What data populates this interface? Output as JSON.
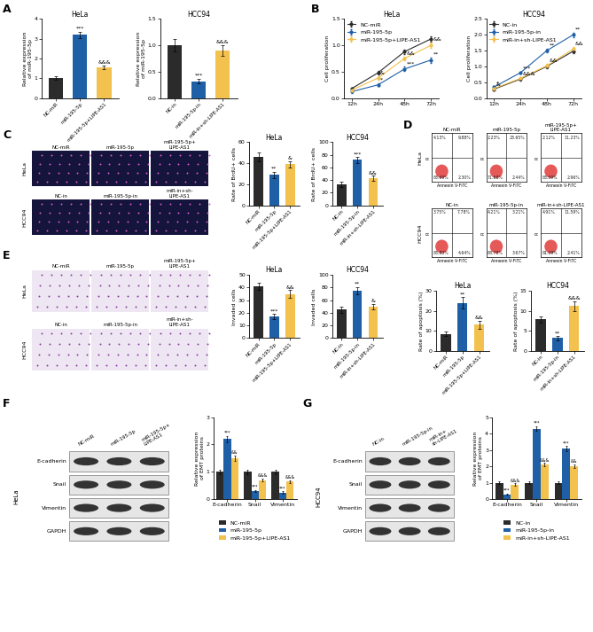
{
  "panel_labels": [
    "A",
    "B",
    "C",
    "D",
    "E",
    "F",
    "G"
  ],
  "chart_data": [
    {
      "type": "bar",
      "title": "HeLa",
      "y_label": "Relative expression\nof miR-195-5p",
      "categories": [
        "NC-miR",
        "miR-195-5p",
        "miR-195-5p+LIPE-AS1"
      ],
      "values": [
        1.0,
        3.2,
        1.55
      ],
      "errors": [
        0.1,
        0.15,
        0.1
      ],
      "colors": [
        "#2b2b2b",
        "#1f5fa6",
        "#f2c14e"
      ],
      "significance": [
        null,
        "***",
        "&&&"
      ],
      "ylim": [
        0,
        4
      ],
      "yticks": [
        0,
        1,
        2,
        3,
        4
      ]
    },
    {
      "type": "bar",
      "title": "HCC94",
      "y_label": "Relative expression\nof miR-195-5p",
      "categories": [
        "NC-in",
        "miR-195-5p-in",
        "miR-in+sh-LIPE-AS1"
      ],
      "values": [
        1.0,
        0.32,
        0.9
      ],
      "errors": [
        0.12,
        0.05,
        0.1
      ],
      "colors": [
        "#2b2b2b",
        "#1f5fa6",
        "#f2c14e"
      ],
      "significance": [
        null,
        "***",
        "&&&"
      ],
      "ylim": [
        0.0,
        1.5
      ],
      "yticks": [
        0.0,
        0.5,
        1.0,
        1.5
      ]
    },
    {
      "type": "line",
      "title": "HeLa",
      "y_label": "Cell proliferation",
      "categories": [
        "12h",
        "24h",
        "48h",
        "72h"
      ],
      "marker": "o",
      "legend": "upper left",
      "series": [
        {
          "name": "NC-miR",
          "color": "#2b2b2b",
          "values": [
            0.18,
            0.48,
            0.88,
            1.12
          ],
          "errors": [
            0.02,
            0.03,
            0.04,
            0.05
          ],
          "significance": [
            null,
            null,
            null,
            null
          ]
        },
        {
          "name": "miR-195-5p",
          "color": "#1f5fa6",
          "values": [
            0.12,
            0.25,
            0.55,
            0.72
          ],
          "errors": [
            0.02,
            0.03,
            0.04,
            0.05
          ],
          "significance": [
            null,
            "*",
            "***",
            "**"
          ]
        },
        {
          "name": "miR-195-5p+LIPE-AS1",
          "color": "#f2c14e",
          "values": [
            0.15,
            0.38,
            0.75,
            1.0
          ],
          "errors": [
            0.02,
            0.03,
            0.04,
            0.05
          ],
          "significance": [
            null,
            "&",
            "&&",
            "&&"
          ]
        }
      ],
      "ylim": [
        0.0,
        1.5
      ],
      "yticks": [
        0.0,
        0.5,
        1.0,
        1.5
      ]
    },
    {
      "type": "line",
      "title": "HCC94",
      "y_label": "Cell proliferation",
      "categories": [
        "12h",
        "24h",
        "48h",
        "72h"
      ],
      "marker": "o",
      "legend": "upper left",
      "series": [
        {
          "name": "NC-in",
          "color": "#2b2b2b",
          "values": [
            0.28,
            0.6,
            1.0,
            1.48
          ],
          "errors": [
            0.03,
            0.04,
            0.05,
            0.06
          ],
          "significance": [
            null,
            null,
            null,
            null
          ]
        },
        {
          "name": "miR-195-5p-in",
          "color": "#1f5fa6",
          "values": [
            0.35,
            0.8,
            1.5,
            2.0
          ],
          "errors": [
            0.03,
            0.04,
            0.06,
            0.07
          ],
          "significance": [
            "*",
            "***",
            "**",
            "**"
          ]
        },
        {
          "name": "miR-in+sh-LIPE-AS1",
          "color": "#f2c14e",
          "values": [
            0.3,
            0.62,
            1.02,
            1.55
          ],
          "errors": [
            0.03,
            0.04,
            0.05,
            0.06
          ],
          "significance": [
            "&",
            "&&&",
            "&&",
            "&&"
          ]
        }
      ],
      "ylim": [
        0.0,
        2.5
      ],
      "yticks": [
        0.0,
        0.5,
        1.0,
        1.5,
        2.0,
        2.5
      ]
    },
    {
      "type": "bar",
      "title": "HeLa",
      "y_label": "Rate of BrdU+ cells",
      "categories": [
        "NC-miR",
        "miR-195-5p",
        "miR-195-5p+LIPE-AS1"
      ],
      "values": [
        46,
        29,
        39
      ],
      "errors": [
        4,
        3,
        3
      ],
      "colors": [
        "#2b2b2b",
        "#1f5fa6",
        "#f2c14e"
      ],
      "significance": [
        null,
        "**",
        "&"
      ],
      "ylim": [
        0,
        60
      ],
      "yticks": [
        0,
        20,
        40,
        60
      ]
    },
    {
      "type": "bar",
      "title": "HCC94",
      "y_label": "Rate of BrdU+ cells",
      "categories": [
        "NC-in",
        "miR-195-5p-in",
        "miR-in+sh-LIPE-AS1"
      ],
      "values": [
        33,
        72,
        43
      ],
      "errors": [
        4,
        5,
        4
      ],
      "colors": [
        "#2b2b2b",
        "#1f5fa6",
        "#f2c14e"
      ],
      "significance": [
        null,
        "***",
        "&&"
      ],
      "ylim": [
        0,
        100
      ],
      "yticks": [
        0,
        20,
        40,
        60,
        80,
        100
      ]
    },
    {
      "type": "bar",
      "title": "HeLa",
      "y_label": "Rate of apoptosis (%)",
      "categories": [
        "NC-miR",
        "miR-195-5p",
        "miR-195-5p+LIPE-AS1"
      ],
      "values": [
        8.5,
        24,
        13
      ],
      "errors": [
        1,
        3,
        2
      ],
      "colors": [
        "#2b2b2b",
        "#1f5fa6",
        "#f2c14e"
      ],
      "significance": [
        null,
        "**",
        "&&"
      ],
      "ylim": [
        0,
        30
      ],
      "yticks": [
        0,
        10,
        20,
        30
      ]
    },
    {
      "type": "bar",
      "title": "HCC94",
      "y_label": "Rate of apoptosis (%)",
      "categories": [
        "NC-in",
        "miR-195-5p-in",
        "miR-in+sh-LIPE-AS1"
      ],
      "values": [
        7.8,
        3.2,
        11.2
      ],
      "errors": [
        0.8,
        0.5,
        1.2
      ],
      "colors": [
        "#2b2b2b",
        "#1f5fa6",
        "#f2c14e"
      ],
      "significance": [
        null,
        "**",
        "&&&"
      ],
      "ylim": [
        0,
        15
      ],
      "yticks": [
        0,
        5,
        10,
        15
      ]
    },
    {
      "type": "bar",
      "title": "HeLa",
      "y_label": "Invaded cells",
      "categories": [
        "NC-miR",
        "miR-195-5p",
        "miR-195-5p+LIPE-AS1"
      ],
      "values": [
        41,
        17,
        35
      ],
      "errors": [
        3,
        2,
        3
      ],
      "colors": [
        "#2b2b2b",
        "#1f5fa6",
        "#f2c14e"
      ],
      "significance": [
        null,
        "***",
        "&&"
      ],
      "ylim": [
        0,
        50
      ],
      "yticks": [
        0,
        10,
        20,
        30,
        40,
        50
      ]
    },
    {
      "type": "bar",
      "title": "HCC94",
      "y_label": "Invaded cells",
      "categories": [
        "NC-in",
        "miR-195-5p-in",
        "miR-in+sh-LIPE-AS1"
      ],
      "values": [
        45,
        75,
        50
      ],
      "errors": [
        5,
        6,
        4
      ],
      "colors": [
        "#2b2b2b",
        "#1f5fa6",
        "#f2c14e"
      ],
      "significance": [
        null,
        "**",
        "&"
      ],
      "ylim": [
        0,
        100
      ],
      "yticks": [
        0,
        20,
        40,
        60,
        80,
        100
      ]
    },
    {
      "type": "bar",
      "y_label": "Relative expression\nof EMT proteins",
      "legend": "below",
      "categories": [
        "E-cadherin",
        "Snail",
        "Vimentin"
      ],
      "series": [
        {
          "name": "NC-miR",
          "color": "#2b2b2b",
          "values": [
            1.0,
            1.0,
            1.0
          ],
          "errors": [
            0.08,
            0.08,
            0.08
          ],
          "significance": [
            null,
            null,
            null
          ]
        },
        {
          "name": "miR-195-5p",
          "color": "#1f5fa6",
          "values": [
            2.2,
            0.3,
            0.25
          ],
          "errors": [
            0.12,
            0.04,
            0.04
          ],
          "significance": [
            "***",
            "***",
            "***"
          ]
        },
        {
          "name": "miR-195-5p+LIPE-AS1",
          "color": "#f2c14e",
          "values": [
            1.5,
            0.7,
            0.65
          ],
          "errors": [
            0.1,
            0.05,
            0.05
          ],
          "significance": [
            "&&",
            "&&&",
            "&&&"
          ]
        }
      ],
      "ylim": [
        0,
        3
      ],
      "yticks": [
        0,
        1,
        2,
        3
      ]
    },
    {
      "type": "bar",
      "y_label": "Relative expression\nof EMT proteins",
      "legend": "below",
      "categories": [
        "E-cadherin",
        "Snail",
        "Vimentin"
      ],
      "series": [
        {
          "name": "NC-in",
          "color": "#2b2b2b",
          "values": [
            1.0,
            1.0,
            1.0
          ],
          "errors": [
            0.08,
            0.08,
            0.08
          ],
          "significance": [
            null,
            null,
            null
          ]
        },
        {
          "name": "miR-195-5p-in",
          "color": "#1f5fa6",
          "values": [
            0.3,
            4.3,
            3.1
          ],
          "errors": [
            0.04,
            0.15,
            0.15
          ],
          "significance": [
            "***",
            "***",
            "***"
          ]
        },
        {
          "name": "miR-in+sh-LIPE-AS1",
          "color": "#f2c14e",
          "values": [
            0.9,
            2.1,
            2.0
          ],
          "errors": [
            0.06,
            0.1,
            0.1
          ],
          "significance": [
            "&&&",
            "&&&",
            "&&"
          ]
        }
      ],
      "ylim": [
        0,
        5
      ],
      "yticks": [
        0,
        1,
        2,
        3,
        4,
        5
      ]
    }
  ],
  "image_panels": [
    {
      "rows": [
        {
          "label": "HeLa",
          "columns": [
            "NC-miR",
            "miR-195-5p",
            "miR-195-5p+\nLIPE-AS1"
          ]
        },
        {
          "label": "HCC94",
          "columns": [
            "NC-in",
            "miR-195-5p-in",
            "miR-in+sh-\nLIPE-AS1"
          ]
        }
      ]
    },
    {
      "rows": [
        {
          "label": "HeLa",
          "columns": [
            "NC-miR",
            "miR-195-5p",
            "miR-195-5p+\nLIPE-AS1"
          ]
        },
        {
          "label": "HCC94",
          "columns": [
            "NC-in",
            "miR-195-5p-in",
            "miR-in+sh-\nLIPE-AS1"
          ]
        }
      ]
    }
  ],
  "flow_cytometry": {
    "x_label": "Annexin V-FITC",
    "y_label": "PI",
    "rows": [
      {
        "label": "HeLa",
        "plots": [
          {
            "title": "NC-miR",
            "quadrants": [
              {
                "value": 4.13,
                "label": "4.13%"
              },
              {
                "value": 9.88,
                "label": "9.88%"
              },
              {
                "value": 83.69,
                "label": "83.69%"
              },
              {
                "value": 2.3,
                "label": "2.30%"
              }
            ]
          },
          {
            "title": "miR-195-5p",
            "quadrants": [
              {
                "value": 2.23,
                "label": "2.23%"
              },
              {
                "value": 23.65,
                "label": "23.65%"
              },
              {
                "value": 71.68,
                "label": "71.68%"
              },
              {
                "value": 2.44,
                "label": "2.44%"
              }
            ]
          },
          {
            "title": "miR-195-5p+\nLIPE-AS1",
            "quadrants": [
              {
                "value": 2.12,
                "label": "2.12%"
              },
              {
                "value": 11.23,
                "label": "11.23%"
              },
              {
                "value": 83.59,
                "label": "83.59%"
              },
              {
                "value": 2.96,
                "label": "2.96%"
              }
            ]
          }
        ]
      },
      {
        "label": "HCC94",
        "plots": [
          {
            "title": "NC-in",
            "quadrants": [
              {
                "value": 3.75,
                "label": "3.75%"
              },
              {
                "value": 7.78,
                "label": "7.78%"
              },
              {
                "value": 83.83,
                "label": "83.83%"
              },
              {
                "value": 4.64,
                "label": "4.64%"
              }
            ]
          },
          {
            "title": "miR-195-5p-in",
            "quadrants": [
              {
                "value": 4.21,
                "label": "4.21%"
              },
              {
                "value": 3.21,
                "label": "3.21%"
              },
              {
                "value": 88.78,
                "label": "88.78%"
              },
              {
                "value": 3.67,
                "label": "3.67%"
              }
            ]
          },
          {
            "title": "miR-in+sh-LIPE-AS1",
            "quadrants": [
              {
                "value": 4.91,
                "label": "4.91%"
              },
              {
                "value": 11.59,
                "label": "11.59%"
              },
              {
                "value": 81.09,
                "label": "81.09%"
              },
              {
                "value": 2.41,
                "label": "2.41%"
              }
            ]
          }
        ]
      }
    ]
  },
  "western_blots": [
    {
      "title": "HeLa",
      "lanes": [
        "NC-miR",
        "miR-195-5p",
        "miR-195-5p+\nLIPE-AS1"
      ],
      "bands": [
        "E-cadherin",
        "Snail",
        "Vimentin",
        "GAPDH"
      ]
    },
    {
      "title": "HCC94",
      "lanes": [
        "NC-in",
        "miR-195-5p-in",
        "miR-in+\nsh-LIPE-AS1"
      ],
      "bands": [
        "E-cadherin",
        "Snail",
        "Vimentin",
        "GAPDH"
      ]
    }
  ]
}
